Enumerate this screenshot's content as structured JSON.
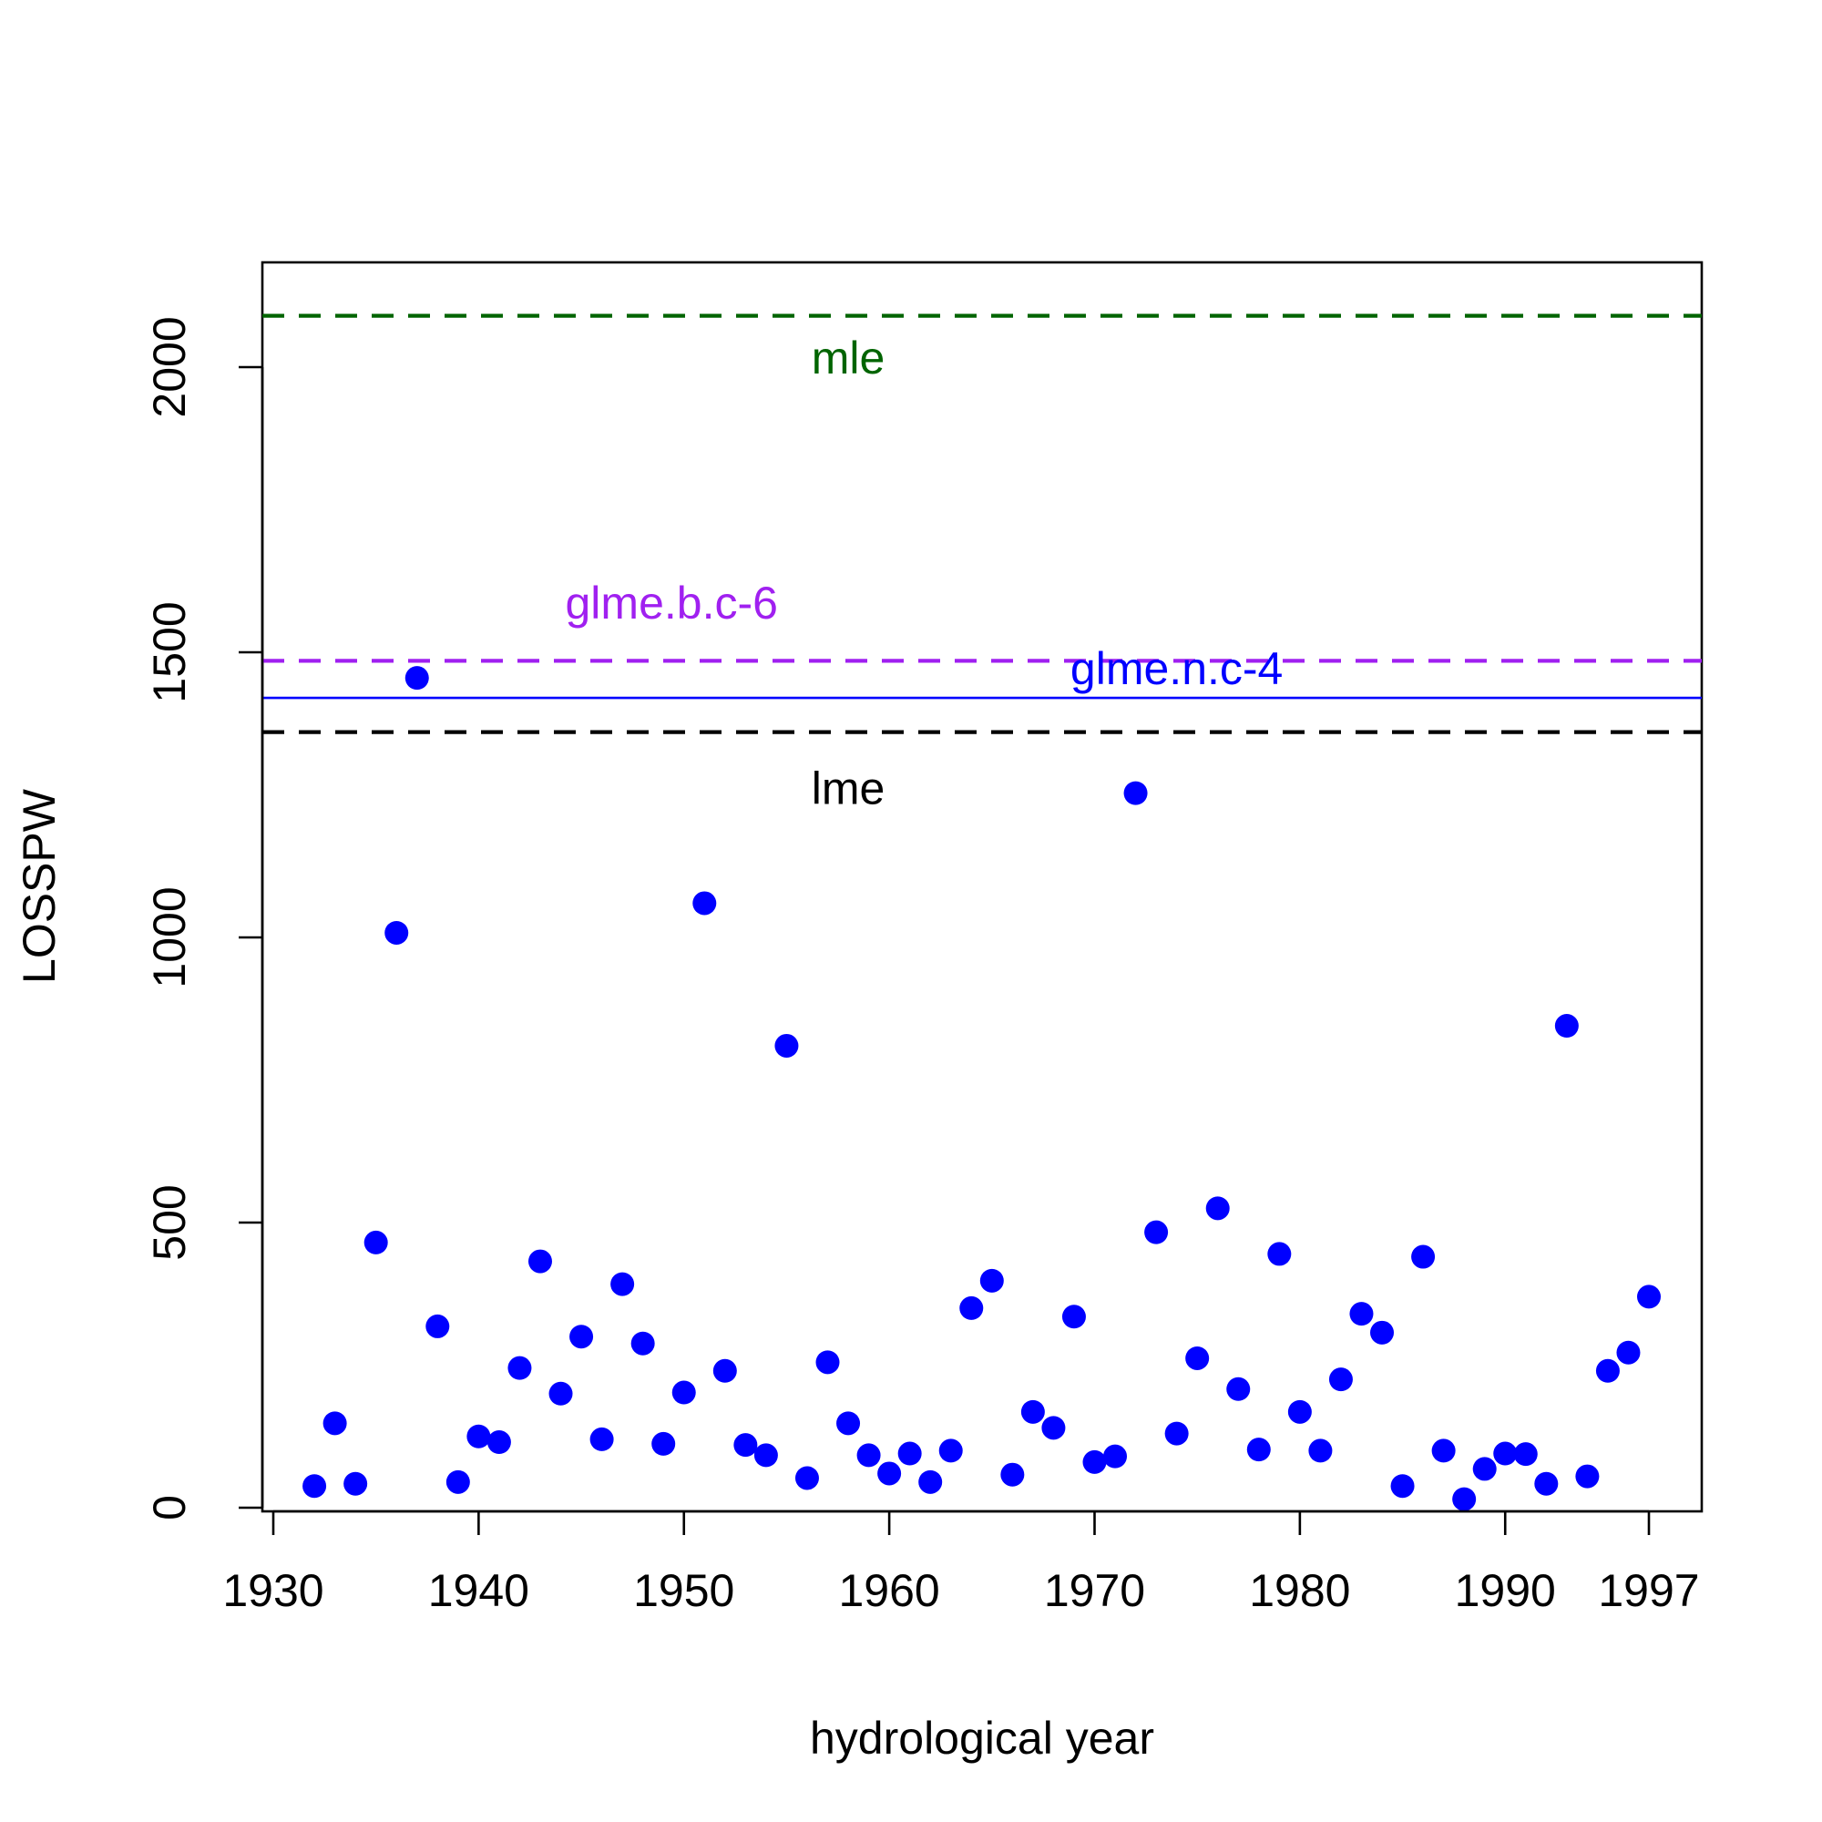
{
  "chart_data": {
    "type": "scatter",
    "xlabel": "hydrological year",
    "ylabel": "LOSSPW",
    "xlim": [
      1929.4,
      1999.6
    ],
    "ylim": [
      -60,
      2130
    ],
    "x_ticks": [
      1930,
      1940,
      1950,
      1960,
      1970,
      1980,
      1990,
      1997
    ],
    "y_ticks": [
      0,
      500,
      1000,
      1500,
      2000
    ],
    "grid": false,
    "point_color": "#0000ff",
    "series": [
      {
        "x": [
          1932,
          1933,
          1934,
          1935,
          1936,
          1937,
          1938,
          1939,
          1940,
          1941,
          1942,
          1943,
          1944,
          1945,
          1946,
          1947,
          1948,
          1949,
          1950,
          1951,
          1952,
          1953,
          1954,
          1955,
          1956,
          1957,
          1958,
          1959,
          1960,
          1961,
          1962,
          1963,
          1964,
          1965,
          1966,
          1967,
          1968,
          1969,
          1970,
          1971,
          1972,
          1973,
          1974,
          1975,
          1976,
          1977,
          1978,
          1979,
          1980,
          1981,
          1982,
          1983,
          1984,
          1985,
          1986,
          1987,
          1988,
          1989,
          1990,
          1991,
          1992,
          1993,
          1994,
          1995,
          1996,
          1997
        ],
        "y": [
          38,
          148,
          42,
          465,
          1008,
          1455,
          318,
          45,
          125,
          115,
          245,
          432,
          200,
          300,
          120,
          392,
          288,
          112,
          202,
          1060,
          240,
          110,
          92,
          810,
          52,
          255,
          148,
          92,
          60,
          95,
          45,
          100,
          350,
          398,
          58,
          168,
          140,
          335,
          80,
          90,
          1253,
          483,
          130,
          262,
          525,
          208,
          102,
          445,
          168,
          100,
          225,
          340,
          307,
          38,
          440,
          100,
          15,
          68,
          95,
          94,
          42,
          845,
          55,
          240,
          272,
          370
        ]
      }
    ],
    "reference_lines": [
      {
        "label": "mle",
        "y": 2090,
        "color": "#006400",
        "style": "dashed",
        "label_x": 1958,
        "label_y": 2010
      },
      {
        "label": "glme.b.c-6",
        "y": 1485,
        "color": "#a020f0",
        "style": "dashed",
        "label_x": 1949.4,
        "label_y": 1580
      },
      {
        "label": "glme.n.c-4",
        "y": 1420,
        "color": "#0000ff",
        "style": "solid",
        "label_x": 1974,
        "label_y": 1465
      },
      {
        "label": "lme",
        "y": 1360,
        "color": "#000000",
        "style": "dashed",
        "label_x": 1958,
        "label_y": 1255
      }
    ]
  }
}
